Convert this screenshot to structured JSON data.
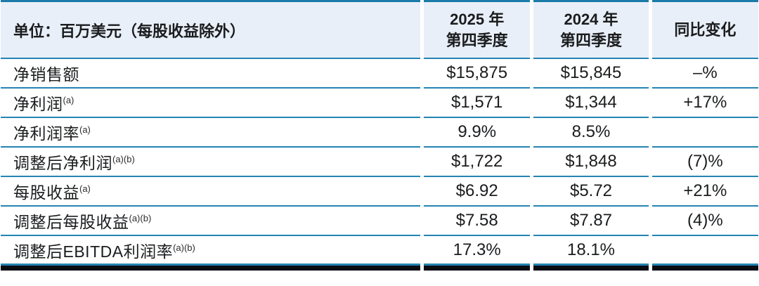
{
  "colors": {
    "accent_blue": "#2484b3",
    "header_background": "#e9eff8",
    "bottom_bar": "#0a0d12",
    "text": "#1a1c1e"
  },
  "table": {
    "header": {
      "unit_label": "单位：百万美元（每股收益除外）",
      "col_2025_line1": "2025 年",
      "col_2025_line2": "第四季度",
      "col_2024_line1": "2024 年",
      "col_2024_line2": "第四季度",
      "col_yoy": "同比变化"
    },
    "rows": [
      {
        "label": "净销售额",
        "sup": "",
        "q4_2025": "$15,875",
        "q4_2024": "$15,845",
        "yoy": "–%"
      },
      {
        "label": "净利润",
        "sup": "(a)",
        "q4_2025": "$1,571",
        "q4_2024": "$1,344",
        "yoy": "+17%"
      },
      {
        "label": "净利润率",
        "sup": "(a)",
        "q4_2025": "9.9%",
        "q4_2024": "8.5%",
        "yoy": ""
      },
      {
        "label": "调整后净利润",
        "sup": "(a)(b)",
        "q4_2025": "$1,722",
        "q4_2024": "$1,848",
        "yoy": "(7)%"
      },
      {
        "label": "每股收益",
        "sup": "(a)",
        "q4_2025": "$6.92",
        "q4_2024": "$5.72",
        "yoy": "+21%"
      },
      {
        "label": "调整后每股收益",
        "sup": "(a)(b)",
        "q4_2025": "$7.58",
        "q4_2024": "$7.87",
        "yoy": "(4)%"
      },
      {
        "label": "调整后EBITDA利润率",
        "sup": "(a)(b)",
        "q4_2025": "17.3%",
        "q4_2024": "18.1%",
        "yoy": ""
      }
    ]
  }
}
